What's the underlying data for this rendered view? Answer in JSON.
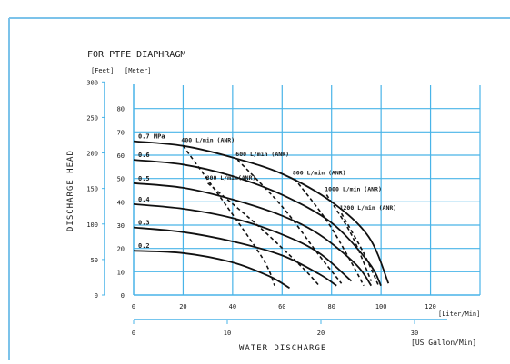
{
  "chart_data": {
    "type": "line",
    "title": "FOR PTFE DIAPHRAGM",
    "left_axis": {
      "unit_feet": "[Feet]",
      "unit_meter": "[Meter]",
      "feet_ticks": [
        {
          "label": "300",
          "m": 91.44
        },
        {
          "label": "250",
          "m": 76.2
        },
        {
          "label": "200",
          "m": 60.96
        },
        {
          "label": "150",
          "m": 45.72
        },
        {
          "label": "100",
          "m": 30.48
        },
        {
          "label": "50",
          "m": 15.24
        },
        {
          "label": "0",
          "m": 0
        }
      ],
      "meter_ticks": [
        "80",
        "70",
        "60",
        "50",
        "40",
        "30",
        "20",
        "10",
        "0"
      ],
      "ylabel": "DISCHARGE HEAD",
      "ylim": [
        0,
        90
      ]
    },
    "bottom_axis": {
      "lpm_ticks": [
        "0",
        "20",
        "40",
        "60",
        "80",
        "100",
        "120"
      ],
      "lpm_unit": "[Liter/Min]",
      "gpm_ticks": [
        {
          "label": "0",
          "lpm": 0
        },
        {
          "label": "10",
          "lpm": 37.85
        },
        {
          "label": "20",
          "lpm": 75.7
        },
        {
          "label": "30",
          "lpm": 113.55
        }
      ],
      "gpm_unit": "[US Gallon/Min]",
      "xlabel": "WATER DISCHARGE",
      "xlim": [
        0,
        140
      ]
    },
    "pressure_series": [
      {
        "label": "0.7 MPa",
        "points": [
          [
            0,
            66
          ],
          [
            20,
            64
          ],
          [
            40,
            59
          ],
          [
            60,
            52
          ],
          [
            80,
            40
          ],
          [
            95,
            25
          ],
          [
            103,
            5
          ]
        ]
      },
      {
        "label": "0.6",
        "points": [
          [
            0,
            58
          ],
          [
            20,
            56
          ],
          [
            40,
            51
          ],
          [
            60,
            43
          ],
          [
            80,
            31
          ],
          [
            95,
            14
          ],
          [
            100,
            4
          ]
        ]
      },
      {
        "label": "0.5",
        "points": [
          [
            0,
            48
          ],
          [
            20,
            46
          ],
          [
            40,
            41
          ],
          [
            60,
            34
          ],
          [
            75,
            26
          ],
          [
            90,
            13
          ],
          [
            96,
            4
          ]
        ]
      },
      {
        "label": "0.4",
        "points": [
          [
            0,
            39
          ],
          [
            20,
            37
          ],
          [
            40,
            33
          ],
          [
            60,
            26
          ],
          [
            75,
            18
          ],
          [
            88,
            6
          ]
        ]
      },
      {
        "label": "0.3",
        "points": [
          [
            0,
            29
          ],
          [
            20,
            27
          ],
          [
            40,
            23
          ],
          [
            60,
            17
          ],
          [
            75,
            9
          ],
          [
            82,
            4
          ]
        ]
      },
      {
        "label": "0.2",
        "points": [
          [
            0,
            19
          ],
          [
            20,
            18
          ],
          [
            40,
            14
          ],
          [
            55,
            8
          ],
          [
            63,
            3
          ]
        ]
      }
    ],
    "flow_series": [
      {
        "label": "400 L/min (ANR)",
        "points": [
          [
            20,
            64
          ],
          [
            35,
            42
          ],
          [
            52,
            16
          ],
          [
            57,
            4
          ]
        ]
      },
      {
        "label": "600 L/min (ANR)",
        "points": [
          [
            42,
            58
          ],
          [
            60,
            38
          ],
          [
            75,
            17
          ],
          [
            84,
            5
          ]
        ]
      },
      {
        "label": "800 L/min (ANR)",
        "points": [
          [
            65,
            50
          ],
          [
            78,
            32
          ],
          [
            88,
            14
          ],
          [
            93,
            4
          ]
        ]
      },
      {
        "label": "1000 L/min (ANR)",
        "points": [
          [
            78,
            43
          ],
          [
            88,
            26
          ],
          [
            96,
            6
          ]
        ]
      },
      {
        "label": "1200 L/min (ANR)",
        "points": [
          [
            84,
            35
          ],
          [
            93,
            18
          ],
          [
            99,
            4
          ]
        ]
      },
      {
        "label": "800 L/min(ANR)",
        "points": [
          [
            30,
            48
          ],
          [
            50,
            30
          ],
          [
            68,
            12
          ],
          [
            75,
            4
          ]
        ]
      }
    ]
  }
}
